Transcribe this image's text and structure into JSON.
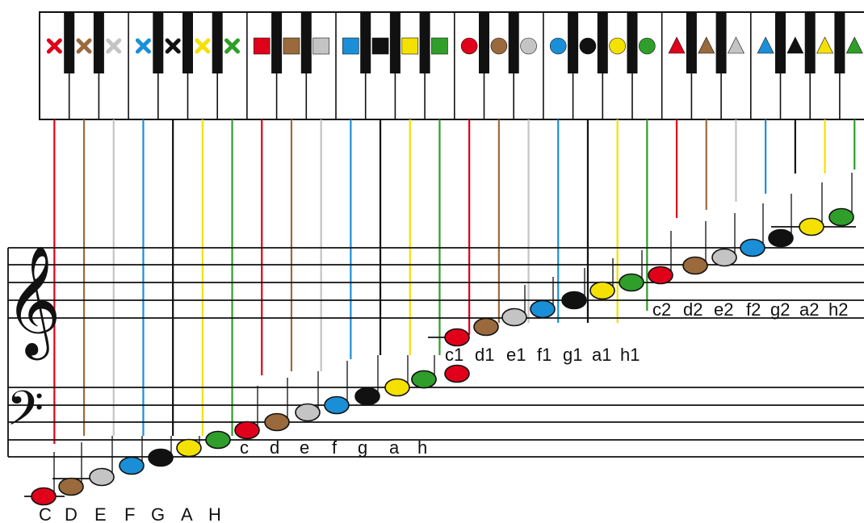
{
  "colors": {
    "red": "#e0001a",
    "brown": "#9a6a3c",
    "grey": "#c4c4c4",
    "blue": "#1a8fd8",
    "black": "#111111",
    "yellow": "#f4e100",
    "green": "#2f9e2a"
  },
  "scale_color_cycle": [
    "red",
    "brown",
    "grey",
    "blue",
    "black",
    "yellow",
    "green"
  ],
  "octave_symbols": [
    {
      "octave": "great",
      "symbol": "cross-icon"
    },
    {
      "octave": "small",
      "symbol": "square-icon"
    },
    {
      "octave": "one-line",
      "symbol": "circle-icon"
    },
    {
      "octave": "two-line",
      "symbol": "triangle-icon"
    }
  ],
  "clefs": {
    "treble": "treble-clef-icon",
    "bass": "bass-clef-icon"
  },
  "note_labels": {
    "great": [
      "C",
      "D",
      "E",
      "F",
      "G",
      "A",
      "H"
    ],
    "small": [
      "c",
      "d",
      "e",
      "f",
      "g",
      "a",
      "h"
    ],
    "one_line": [
      "c1",
      "d1",
      "e1",
      "f1",
      "g1",
      "a1",
      "h1"
    ],
    "two_line": [
      "c2",
      "d2",
      "e2",
      "f2",
      "g2",
      "a2",
      "h2"
    ]
  },
  "label_glyphs": {
    "treble_clef": "𝄞",
    "bass_clef": "𝄢"
  }
}
